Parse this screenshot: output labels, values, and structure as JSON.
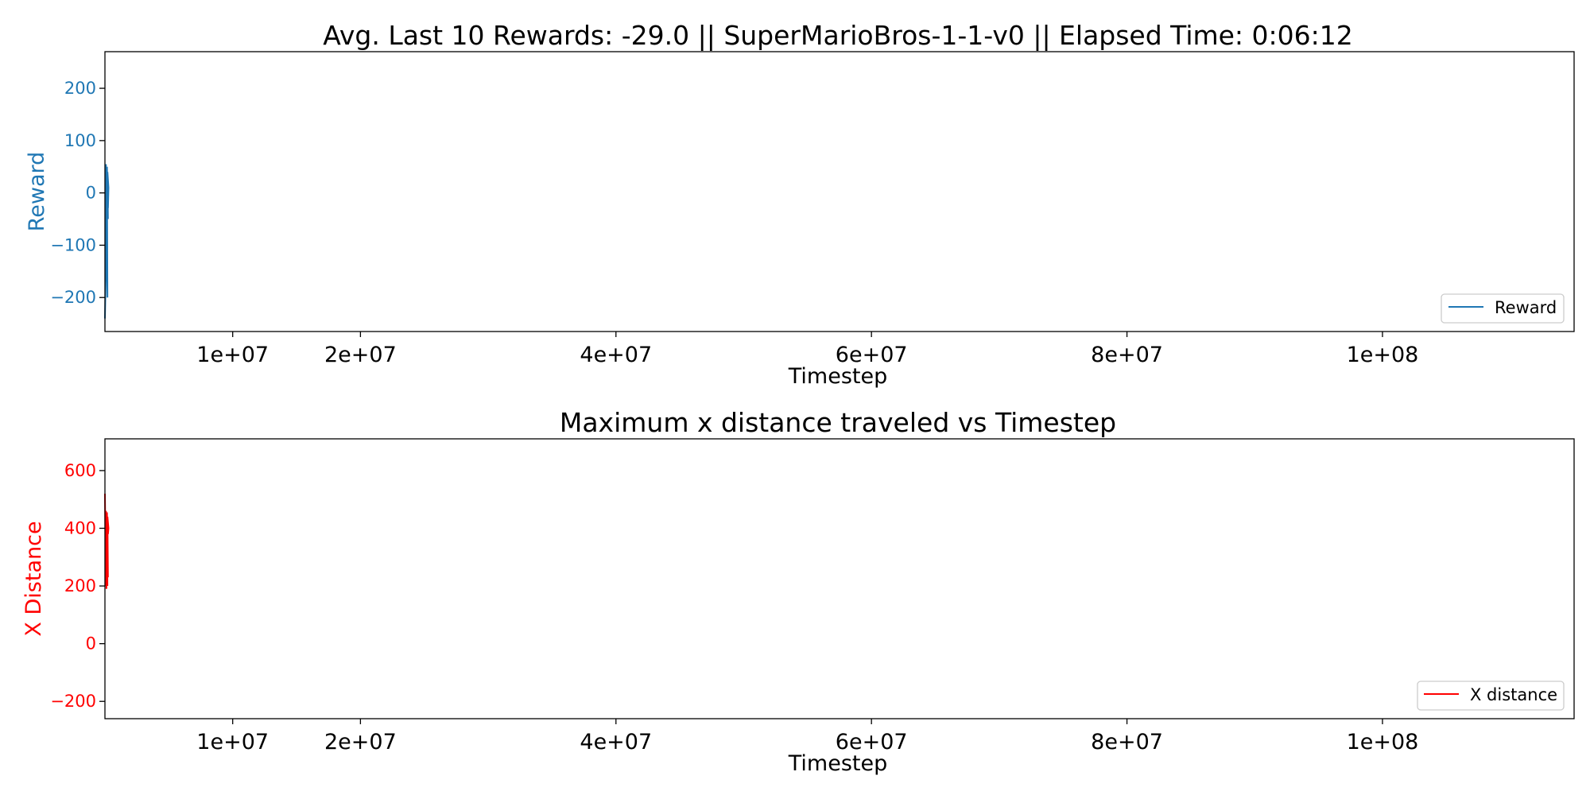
{
  "chart_data": [
    {
      "type": "line",
      "title": "Avg. Last 10 Rewards: -29.0 || SuperMarioBros-1-1-v0 || Elapsed Time: 0:06:12",
      "xlabel": "Timestep",
      "ylabel": "Reward",
      "xlim": [
        0,
        115000000
      ],
      "ylim": [
        -265,
        270
      ],
      "x_ticks": [
        {
          "value": 10000000,
          "label": "1e+07"
        },
        {
          "value": 20000000,
          "label": "2e+07"
        },
        {
          "value": 40000000,
          "label": "4e+07"
        },
        {
          "value": 60000000,
          "label": "6e+07"
        },
        {
          "value": 80000000,
          "label": "8e+07"
        },
        {
          "value": 100000000,
          "label": "1e+08"
        }
      ],
      "y_ticks": [
        {
          "value": 200,
          "label": "200"
        },
        {
          "value": 100,
          "label": "100"
        },
        {
          "value": 0,
          "label": "0"
        },
        {
          "value": -100,
          "label": "−100"
        },
        {
          "value": -200,
          "label": "−200"
        }
      ],
      "color": "#1f77b4",
      "legend_position": "bottom-right",
      "grid": false,
      "series": [
        {
          "name": "Reward",
          "x": [
            0,
            20000,
            40000,
            60000,
            80000,
            100000,
            120000,
            140000,
            160000,
            180000,
            200000,
            220000,
            240000
          ],
          "y": [
            -240,
            -150,
            30,
            -140,
            55,
            -60,
            20,
            -200,
            50,
            -50,
            40,
            10,
            -29
          ]
        }
      ]
    },
    {
      "type": "line",
      "title": "Maximum x distance traveled vs Timestep",
      "xlabel": "Timestep",
      "ylabel": "X Distance",
      "xlim": [
        0,
        115000000
      ],
      "ylim": [
        -260,
        710
      ],
      "x_ticks": [
        {
          "value": 10000000,
          "label": "1e+07"
        },
        {
          "value": 20000000,
          "label": "2e+07"
        },
        {
          "value": 40000000,
          "label": "4e+07"
        },
        {
          "value": 60000000,
          "label": "6e+07"
        },
        {
          "value": 80000000,
          "label": "8e+07"
        },
        {
          "value": 100000000,
          "label": "1e+08"
        }
      ],
      "y_ticks": [
        {
          "value": 600,
          "label": "600"
        },
        {
          "value": 400,
          "label": "400"
        },
        {
          "value": 200,
          "label": "200"
        },
        {
          "value": 0,
          "label": "0"
        },
        {
          "value": -200,
          "label": "−200"
        }
      ],
      "color": "#ff0000",
      "legend_position": "bottom-right",
      "grid": false,
      "series": [
        {
          "name": "X distance",
          "x": [
            0,
            20000,
            40000,
            60000,
            80000,
            100000,
            120000,
            140000,
            160000,
            180000,
            200000,
            220000,
            240000
          ],
          "y": [
            520,
            200,
            450,
            190,
            460,
            380,
            420,
            200,
            455,
            230,
            440,
            400,
            380
          ]
        }
      ]
    }
  ]
}
